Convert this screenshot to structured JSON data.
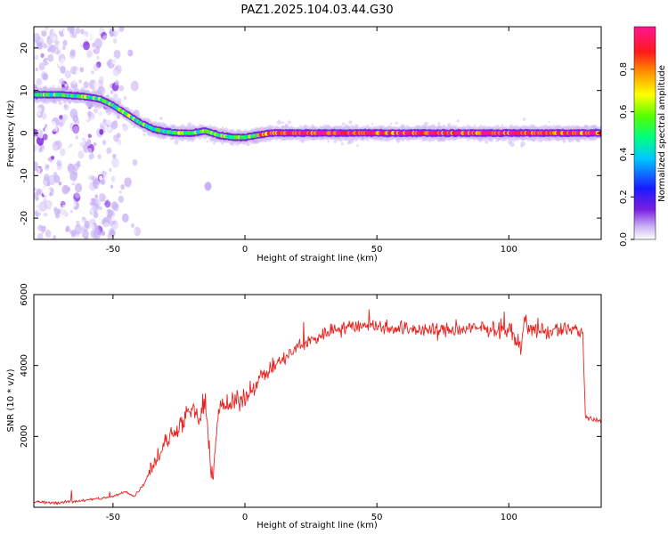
{
  "title": "PAZ1.2025.104.03.44.G30",
  "colors": {
    "snr_line": "#e8231f",
    "background": "#ffffff",
    "axis": "#000000",
    "colormap": [
      "#ffffff",
      "#c9b3f5",
      "#7b1fe0",
      "#1a1aff",
      "#00c8ff",
      "#00ff7f",
      "#55ff00",
      "#ffff00",
      "#ff9900",
      "#ff1a1a",
      "#ff1493"
    ]
  },
  "chart_data": [
    {
      "type": "heatmap",
      "title": "PAZ1.2025.104.03.44.G30",
      "xlabel": "Height of straight line (km)",
      "ylabel": "Frequency (Hz)",
      "xlim": [
        -80,
        135
      ],
      "ylim": [
        -25,
        25
      ],
      "xticks": [
        -50,
        0,
        50,
        100
      ],
      "yticks": [
        -20,
        -10,
        0,
        10,
        20
      ],
      "colorbar": {
        "label": "Normalized spectral amplitude",
        "range": [
          0,
          1
        ],
        "ticks": [
          "0.0",
          "0.2",
          "0.4",
          "0.6",
          "0.8"
        ],
        "tick_values": [
          0,
          0.2,
          0.4,
          0.6,
          0.8
        ]
      },
      "ridge": {
        "x": [
          -80,
          -70,
          -60,
          -55,
          -50,
          -45,
          -40,
          -35,
          -30,
          -25,
          -20,
          -15,
          -10,
          -5,
          0,
          5,
          10,
          20,
          40,
          60,
          80,
          100,
          120,
          135
        ],
        "frequency": [
          9,
          9,
          8.5,
          8,
          6.5,
          4.5,
          2.5,
          1,
          0.3,
          0,
          0,
          0.5,
          -0.5,
          -1,
          -1,
          -0.5,
          0,
          0,
          0,
          0,
          0,
          0,
          0,
          0
        ]
      },
      "noise_region": [
        -80,
        -40
      ],
      "blob": {
        "x": -14,
        "frequency": -12.5
      }
    },
    {
      "type": "line",
      "xlabel": "Height of straight line (km)",
      "ylabel": "SNR (10 * v/v)",
      "xlim": [
        -80,
        135
      ],
      "ylim": [
        0,
        6000
      ],
      "xticks": [
        -50,
        0,
        50,
        100
      ],
      "yticks": [
        2000,
        4000,
        6000
      ],
      "series": [
        {
          "x": [
            -80,
            -70,
            -60,
            -50,
            -45,
            -42,
            -40,
            -38,
            -35,
            -30,
            -25,
            -20,
            -17,
            -15,
            -13,
            -12,
            -10,
            -5,
            0,
            5,
            10,
            15,
            20,
            25,
            30,
            35,
            40,
            45,
            50,
            60,
            70,
            80,
            90,
            100,
            105,
            106,
            107,
            110,
            115,
            120,
            125,
            128,
            129,
            130,
            135
          ],
          "y": [
            150,
            130,
            200,
            300,
            450,
            300,
            500,
            700,
            1200,
            1800,
            2300,
            2700,
            2500,
            2900,
            1200,
            1000,
            2800,
            2900,
            3100,
            3600,
            3900,
            4200,
            4500,
            4700,
            4900,
            5050,
            5100,
            5150,
            5100,
            5050,
            5000,
            5000,
            5050,
            5000,
            4500,
            5600,
            5000,
            5000,
            4950,
            5000,
            5050,
            4900,
            2600,
            2500,
            2400
          ]
        }
      ]
    }
  ]
}
